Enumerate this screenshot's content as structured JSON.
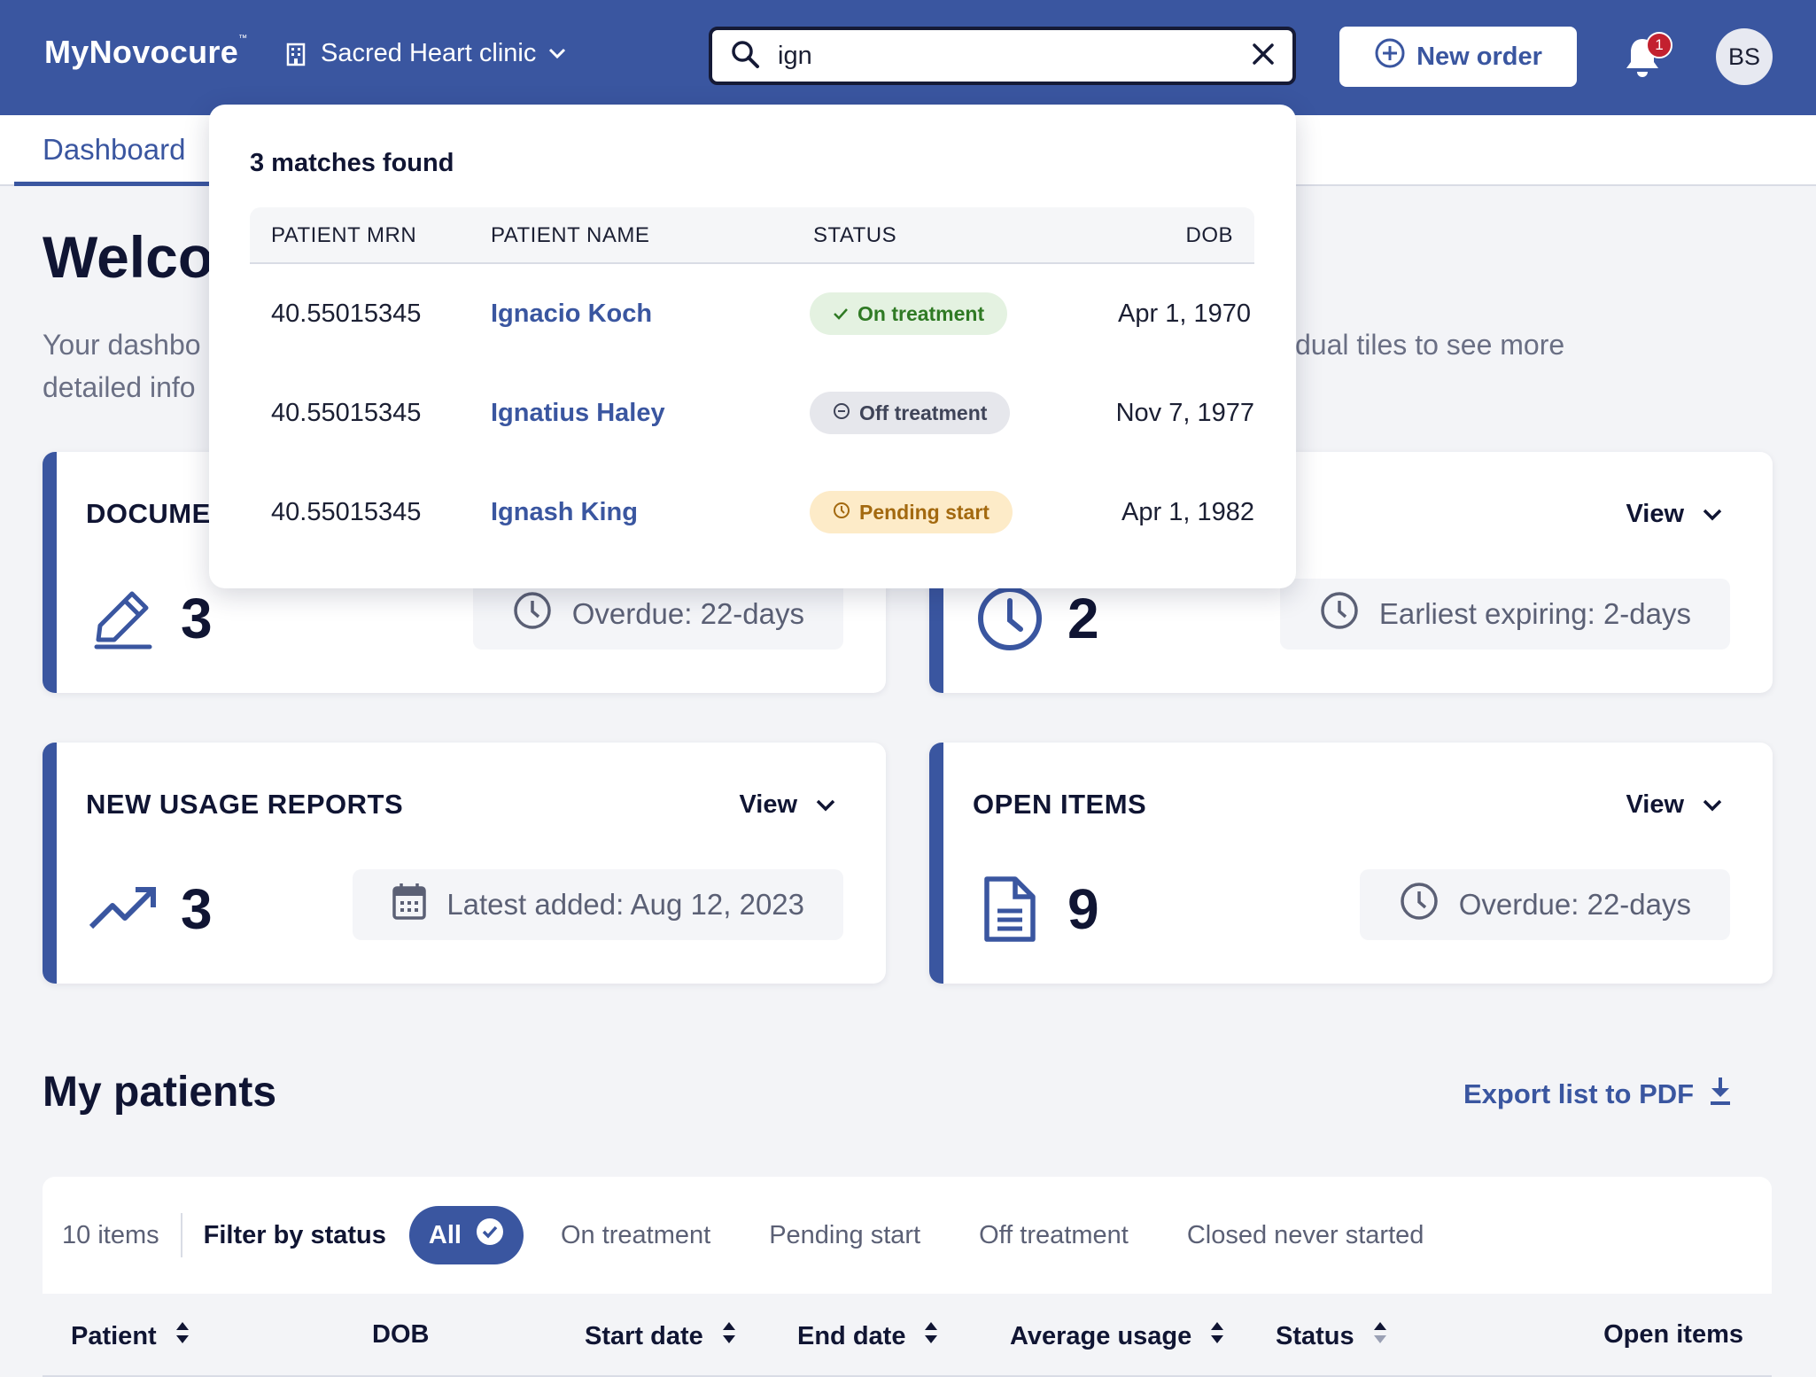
{
  "header": {
    "logo": "MyNovocure",
    "logo_tm": "™",
    "clinic": "Sacred Heart clinic",
    "search_value": "ign",
    "new_order": "New order",
    "notification_count": "1",
    "avatar_initials": "BS",
    "brand_color": "#3a56a0"
  },
  "nav": {
    "tab_dashboard": "Dashboard"
  },
  "welcome": {
    "title_visible": "Welco",
    "subtitle_left_1": "Your dashbo",
    "subtitle_left_2": "detailed info",
    "subtitle_right": "dual tiles to see more"
  },
  "cards": [
    {
      "title": "DOCUME",
      "view": "",
      "count": "3",
      "pill": "Overdue: 22-days",
      "icon": "pen-icon",
      "pill_icon": "clock-icon"
    },
    {
      "title": "",
      "view": "View",
      "count": "2",
      "pill": "Earliest expiring: 2-days",
      "icon": "clock-icon",
      "pill_icon": "clock-icon"
    },
    {
      "title": "NEW USAGE REPORTS",
      "view": "View",
      "count": "3",
      "pill": "Latest added: Aug 12, 2023",
      "icon": "trend-up-icon",
      "pill_icon": "calendar-icon"
    },
    {
      "title": "OPEN ITEMS",
      "view": "View",
      "count": "9",
      "pill": "Overdue: 22-days",
      "icon": "document-icon",
      "pill_icon": "clock-icon"
    }
  ],
  "patients": {
    "title": "My patients",
    "export": "Export list to PDF",
    "items_count": "10 items",
    "filter_label": "Filter by status",
    "filters": [
      "All",
      "On treatment",
      "Pending start",
      "Off treatment",
      "Closed never started"
    ],
    "columns": [
      "Patient",
      "DOB",
      "Start date",
      "End date",
      "Average usage",
      "Status",
      "Open items"
    ]
  },
  "search_results": {
    "matches": "3 matches found",
    "columns": [
      "PATIENT MRN",
      "PATIENT NAME",
      "STATUS",
      "DOB"
    ],
    "rows": [
      {
        "mrn": "40.55015345",
        "name": "Ignacio Koch",
        "status": "On treatment",
        "dob": "Apr 1, 1970"
      },
      {
        "mrn": "40.55015345",
        "name": "Ignatius Haley",
        "status": "Off treatment",
        "dob": "Nov 7, 1977"
      },
      {
        "mrn": "40.55015345",
        "name": "Ignash King",
        "status": "Pending start",
        "dob": "Apr 1, 1982"
      }
    ]
  }
}
